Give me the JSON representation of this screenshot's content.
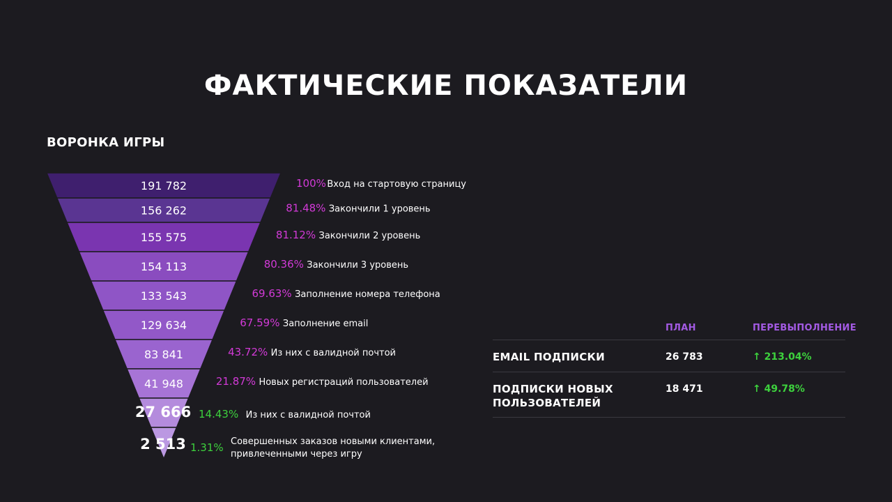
{
  "title": "ФАКТИЧЕСКИЕ ПОКАЗАТЕЛИ",
  "funnel_title": "ВОРОНКА ИГРЫ",
  "colors": {
    "background": "#1c1b20",
    "percent_magenta": "#d23ad7",
    "percent_green": "#3dd13d",
    "header_purple": "#a35ae3",
    "stage_fills": [
      "#3f1f6e",
      "#5a3592",
      "#7a35b0",
      "#8a4cbf",
      "#8f55c6",
      "#9258c8",
      "#9a64cf",
      "#a774d6",
      "#b48bdd",
      "#bb98e2"
    ]
  },
  "chart_data": {
    "type": "funnel",
    "title": "ВОРОНКА ИГРЫ",
    "stages": [
      {
        "value": "191 782",
        "percent": "100%",
        "label": "Вход на стартовую страницу",
        "highlight": false
      },
      {
        "value": "156 262",
        "percent": "81.48%",
        "label": "Закончили 1 уровень",
        "highlight": false
      },
      {
        "value": "155 575",
        "percent": "81.12%",
        "label": "Закончили 2 уровень",
        "highlight": false
      },
      {
        "value": "154 113",
        "percent": "80.36%",
        "label": "Закончили 3 уровень",
        "highlight": false
      },
      {
        "value": "133 543",
        "percent": "69.63%",
        "label": "Заполнение номера телефона",
        "highlight": false
      },
      {
        "value": "129 634",
        "percent": "67.59%",
        "label": "Заполнение email",
        "highlight": false
      },
      {
        "value": "83 841",
        "percent": "43.72%",
        "label": "Из них с валидной почтой",
        "highlight": false
      },
      {
        "value": "41 948",
        "percent": "21.87%",
        "label": "Новых регистраций пользователей",
        "highlight": false
      },
      {
        "value": "27 666",
        "percent": "14.43%",
        "label": "Из них с валидной почтой",
        "highlight": true
      },
      {
        "value": "2 513",
        "percent": "1.31%",
        "label": "Совершенных заказов новыми клиентами,",
        "label2": "привлеченными через игру",
        "highlight": true
      }
    ]
  },
  "table": {
    "headers": {
      "plan": "ПЛАН",
      "over": "ПЕРЕВЫПОЛНЕНИЕ"
    },
    "rows": [
      {
        "name": "EMAIL ПОДПИСКИ",
        "plan": "26 783",
        "over": "↑ 213.04%"
      },
      {
        "name": "ПОДПИСКИ НОВЫХ ПОЛЬЗОВАТЕЛЕЙ",
        "plan": "18 471",
        "over": "↑ 49.78%"
      }
    ]
  }
}
